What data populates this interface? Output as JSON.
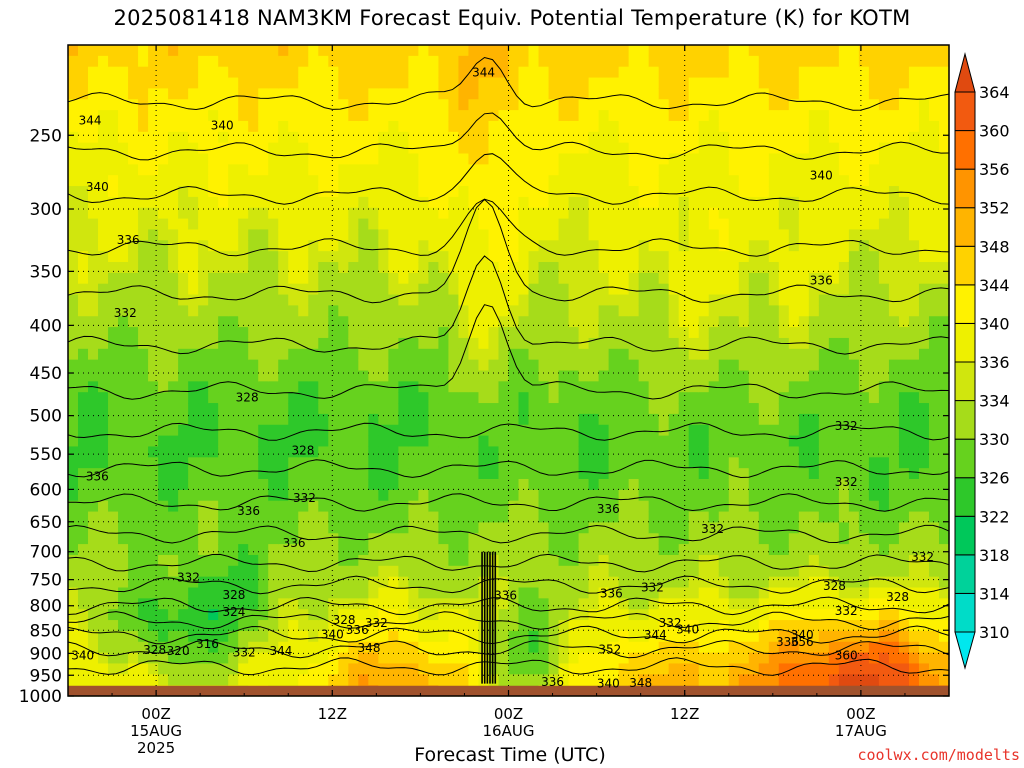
{
  "chart_data": {
    "type": "heatmap",
    "title": "2025081418 NAM3KM Forecast Equiv. Potential Temperature (K) for KOTM",
    "xlabel": "Forecast Time (UTC)",
    "ylabel": "",
    "y_axis": {
      "scale": "log",
      "reversed": true,
      "range": [
        200,
        1000
      ],
      "ticks": [
        "250",
        "300",
        "350",
        "400",
        "450",
        "500",
        "550",
        "600",
        "650",
        "700",
        "750",
        "800",
        "850",
        "900",
        "950",
        "1000"
      ]
    },
    "x_axis": {
      "range_hours": [
        18,
        78
      ],
      "ticks": [
        {
          "hour": 24,
          "lines": [
            "00Z",
            "15AUG",
            "2025"
          ]
        },
        {
          "hour": 36,
          "lines": [
            "12Z",
            "",
            ""
          ]
        },
        {
          "hour": 48,
          "lines": [
            "00Z",
            "16AUG",
            ""
          ]
        },
        {
          "hour": 60,
          "lines": [
            "12Z",
            "",
            ""
          ]
        },
        {
          "hour": 72,
          "lines": [
            "00Z",
            "17AUG",
            ""
          ]
        }
      ]
    },
    "grid": true,
    "colorbar": {
      "levels": [
        "310",
        "314",
        "318",
        "322",
        "326",
        "330",
        "334",
        "336",
        "340",
        "344",
        "348",
        "352",
        "356",
        "360",
        "364"
      ],
      "colors": [
        "#00e8ee",
        "#00dcc8",
        "#00d29a",
        "#00c85a",
        "#2ec82a",
        "#66d21e",
        "#a6dc1a",
        "#d0e60e",
        "#eef000",
        "#fff200",
        "#ffd200",
        "#ffb400",
        "#ff9400",
        "#ff7000",
        "#f25a10",
        "#e04a10"
      ],
      "position": "right"
    },
    "contour_labels": [
      {
        "text": "344",
        "hour": 46.3,
        "p": 214
      },
      {
        "text": "344",
        "hour": 19.5,
        "p": 241
      },
      {
        "text": "340",
        "hour": 28.5,
        "p": 244
      },
      {
        "text": "340",
        "hour": 20.0,
        "p": 284
      },
      {
        "text": "340",
        "hour": 69.3,
        "p": 276
      },
      {
        "text": "336",
        "hour": 22.1,
        "p": 324
      },
      {
        "text": "336",
        "hour": 69.3,
        "p": 358
      },
      {
        "text": "332",
        "hour": 21.9,
        "p": 388
      },
      {
        "text": "328",
        "hour": 30.2,
        "p": 478
      },
      {
        "text": "332",
        "hour": 71.0,
        "p": 513
      },
      {
        "text": "328",
        "hour": 34.0,
        "p": 545
      },
      {
        "text": "336",
        "hour": 20.0,
        "p": 581
      },
      {
        "text": "332",
        "hour": 71.0,
        "p": 589
      },
      {
        "text": "332",
        "hour": 34.1,
        "p": 613
      },
      {
        "text": "336",
        "hour": 30.3,
        "p": 633
      },
      {
        "text": "336",
        "hour": 54.8,
        "p": 630
      },
      {
        "text": "332",
        "hour": 61.9,
        "p": 662
      },
      {
        "text": "336",
        "hour": 33.4,
        "p": 685
      },
      {
        "text": "332",
        "hour": 76.2,
        "p": 709
      },
      {
        "text": "332",
        "hour": 26.2,
        "p": 746
      },
      {
        "text": "332",
        "hour": 57.8,
        "p": 765
      },
      {
        "text": "336",
        "hour": 47.8,
        "p": 780
      },
      {
        "text": "336",
        "hour": 55.0,
        "p": 776
      },
      {
        "text": "328",
        "hour": 29.3,
        "p": 779
      },
      {
        "text": "328",
        "hour": 70.2,
        "p": 762
      },
      {
        "text": "328",
        "hour": 74.5,
        "p": 783
      },
      {
        "text": "324",
        "hour": 29.3,
        "p": 812
      },
      {
        "text": "332",
        "hour": 71.0,
        "p": 810
      },
      {
        "text": "328",
        "hour": 36.8,
        "p": 829
      },
      {
        "text": "332",
        "hour": 39.0,
        "p": 835
      },
      {
        "text": "332",
        "hour": 59.0,
        "p": 835
      },
      {
        "text": "336",
        "hour": 37.7,
        "p": 849
      },
      {
        "text": "340",
        "hour": 60.2,
        "p": 848
      },
      {
        "text": "340",
        "hour": 36.0,
        "p": 859
      },
      {
        "text": "344",
        "hour": 58.0,
        "p": 860
      },
      {
        "text": "340",
        "hour": 68.0,
        "p": 860
      },
      {
        "text": "316",
        "hour": 27.5,
        "p": 879
      },
      {
        "text": "336",
        "hour": 67.0,
        "p": 875
      },
      {
        "text": "356",
        "hour": 68.0,
        "p": 875
      },
      {
        "text": "320",
        "hour": 25.5,
        "p": 895
      },
      {
        "text": "328",
        "hour": 23.9,
        "p": 893
      },
      {
        "text": "352",
        "hour": 54.9,
        "p": 891
      },
      {
        "text": "340",
        "hour": 19.0,
        "p": 905
      },
      {
        "text": "332",
        "hour": 30.0,
        "p": 898
      },
      {
        "text": "344",
        "hour": 32.5,
        "p": 895
      },
      {
        "text": "348",
        "hour": 38.5,
        "p": 888
      },
      {
        "text": "360",
        "hour": 71.0,
        "p": 905
      },
      {
        "text": "336",
        "hour": 51.0,
        "p": 966
      },
      {
        "text": "340",
        "hour": 54.8,
        "p": 970
      },
      {
        "text": "348",
        "hour": 57.0,
        "p": 968
      }
    ]
  },
  "credit": "coolwx.com/modelts"
}
